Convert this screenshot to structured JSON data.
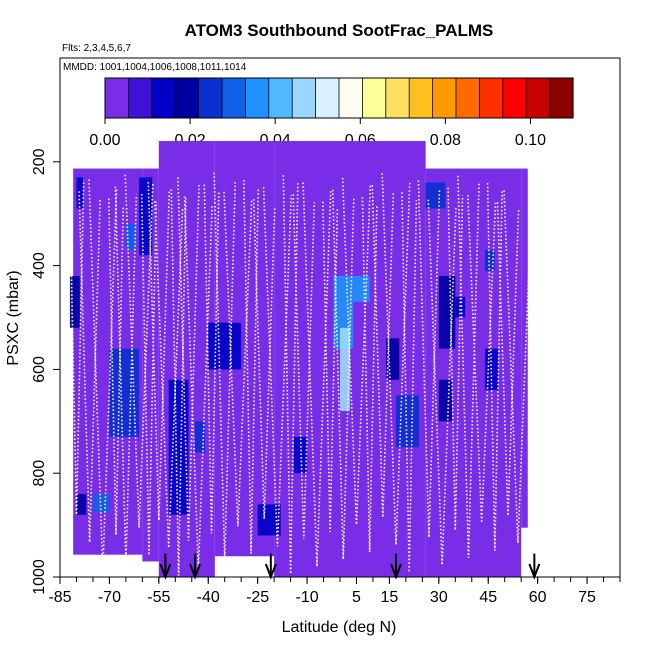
{
  "chart_data": {
    "type": "heatmap",
    "title": "ATOM3 Southbound SootFrac_PALMS",
    "flights_label": "Flts: 2,3,4,5,6,7",
    "mmdd_label": "MMDD: 1001,1004,1006,1008,1011,1014",
    "xlabel": "Latitude (deg N)",
    "ylabel": "PSXC (mbar)",
    "xlim": [
      -85,
      85
    ],
    "ylim": [
      1000,
      0
    ],
    "x_ticks": [
      -85,
      -70,
      -55,
      -40,
      -25,
      -10,
      5,
      15,
      30,
      45,
      60,
      75
    ],
    "x_tick_labels": [
      "-85",
      "-70",
      "-55",
      "-40",
      "-25",
      "-10",
      "5",
      "15",
      "30",
      "45",
      "60",
      "75"
    ],
    "y_ticks": [
      200,
      400,
      600,
      800,
      1000
    ],
    "y_tick_labels": [
      "200",
      "400",
      "600",
      "800",
      "1000"
    ],
    "colorbar": {
      "min": 0.0,
      "max": 0.11,
      "ticks": [
        0.0,
        0.02,
        0.04,
        0.06,
        0.08,
        0.1
      ],
      "tick_labels": [
        "0.00",
        "0.02",
        "0.04",
        "0.06",
        "0.08",
        "0.10"
      ],
      "colors": [
        "#7a2de6",
        "#4010d8",
        "#0000c8",
        "#0000a0",
        "#0a30d0",
        "#1060e8",
        "#1e90ff",
        "#50b8ff",
        "#9ad6ff",
        "#d8f0ff",
        "#fcfcf0",
        "#ffff99",
        "#ffe060",
        "#ffc020",
        "#ff9900",
        "#ff6a00",
        "#ff3000",
        "#ff0000",
        "#c80000",
        "#8a0000"
      ]
    },
    "background_value": 0.0,
    "anomalies": [
      {
        "lat_min": -80,
        "lat_max": -78,
        "p_min": 230,
        "p_max": 290,
        "value": 0.015
      },
      {
        "lat_min": -82,
        "lat_max": -79,
        "p_min": 420,
        "p_max": 520,
        "value": 0.018
      },
      {
        "lat_min": -80,
        "lat_max": -77,
        "p_min": 840,
        "p_max": 880,
        "value": 0.02
      },
      {
        "lat_min": -75,
        "lat_max": -70,
        "p_min": 840,
        "p_max": 875,
        "value": 0.03
      },
      {
        "lat_min": -70,
        "lat_max": -61,
        "p_min": 560,
        "p_max": 730,
        "value": 0.025
      },
      {
        "lat_min": -65,
        "lat_max": -62,
        "p_min": 320,
        "p_max": 370,
        "value": 0.03
      },
      {
        "lat_min": -61,
        "lat_max": -57,
        "p_min": 230,
        "p_max": 380,
        "value": 0.015
      },
      {
        "lat_min": -52,
        "lat_max": -46,
        "p_min": 620,
        "p_max": 880,
        "value": 0.014
      },
      {
        "lat_min": -44,
        "lat_max": -41,
        "p_min": 700,
        "p_max": 760,
        "value": 0.025
      },
      {
        "lat_min": -40,
        "lat_max": -30,
        "p_min": 510,
        "p_max": 600,
        "value": 0.015
      },
      {
        "lat_min": -25,
        "lat_max": -18,
        "p_min": 860,
        "p_max": 920,
        "value": 0.015
      },
      {
        "lat_min": -14,
        "lat_max": -10,
        "p_min": 730,
        "p_max": 800,
        "value": 0.015
      },
      {
        "lat_min": -2,
        "lat_max": 4,
        "p_min": 420,
        "p_max": 560,
        "value": 0.035
      },
      {
        "lat_min": 0,
        "lat_max": 3,
        "p_min": 520,
        "p_max": 680,
        "value": 0.045
      },
      {
        "lat_min": 4,
        "lat_max": 9,
        "p_min": 420,
        "p_max": 470,
        "value": 0.038
      },
      {
        "lat_min": 14,
        "lat_max": 18,
        "p_min": 540,
        "p_max": 620,
        "value": 0.018
      },
      {
        "lat_min": 17,
        "lat_max": 24,
        "p_min": 650,
        "p_max": 750,
        "value": 0.025
      },
      {
        "lat_min": 26,
        "lat_max": 32,
        "p_min": 240,
        "p_max": 290,
        "value": 0.025
      },
      {
        "lat_min": 30,
        "lat_max": 35,
        "p_min": 420,
        "p_max": 560,
        "value": 0.022
      },
      {
        "lat_min": 30,
        "lat_max": 34,
        "p_min": 620,
        "p_max": 700,
        "value": 0.02
      },
      {
        "lat_min": 35,
        "lat_max": 38,
        "p_min": 460,
        "p_max": 500,
        "value": 0.015
      },
      {
        "lat_min": 44,
        "lat_max": 47,
        "p_min": 370,
        "p_max": 410,
        "value": 0.025
      },
      {
        "lat_min": 44,
        "lat_max": 48,
        "p_min": 560,
        "p_max": 640,
        "value": 0.015
      }
    ],
    "arrows_latitude": [
      -53,
      -44,
      -21,
      17,
      59
    ]
  }
}
